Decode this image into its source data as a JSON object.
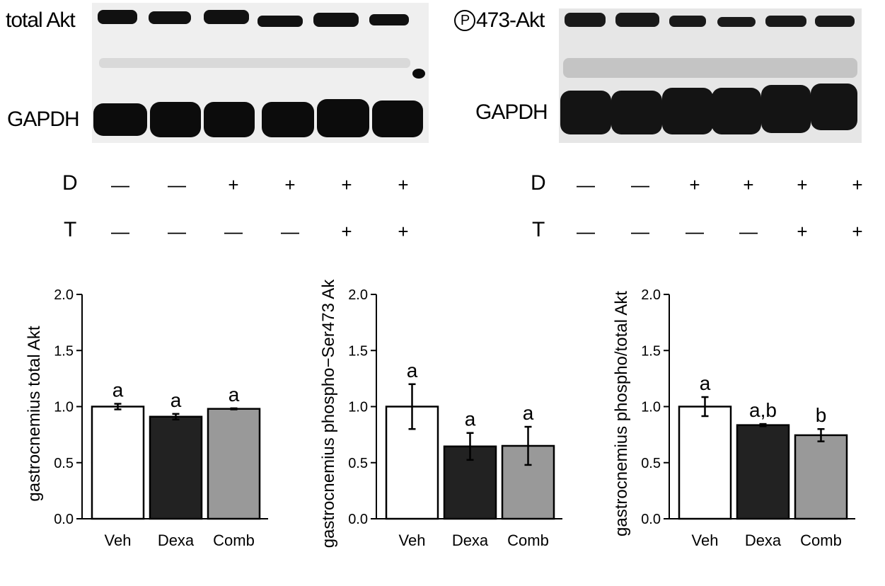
{
  "blots": [
    {
      "left_labels": [
        "total Akt",
        "GAPDH"
      ],
      "mark": ""
    },
    {
      "left_labels": [
        "473-Akt",
        "GAPDH"
      ],
      "mark": "P"
    }
  ],
  "treatment": {
    "row_labels": [
      "D",
      "T"
    ],
    "D": [
      "—",
      "—",
      "+",
      "+",
      "+",
      "+"
    ],
    "T": [
      "—",
      "—",
      "—",
      "—",
      "+",
      "+"
    ]
  },
  "chart_data": [
    {
      "type": "bar",
      "categories": [
        "Veh",
        "Dexa",
        "Comb"
      ],
      "values": [
        1.0,
        0.91,
        0.98
      ],
      "errors": [
        0.025,
        0.025,
        0.005
      ],
      "letters": [
        "a",
        "a",
        "a"
      ],
      "colors": [
        "#ffffff",
        "#222222",
        "#999999"
      ],
      "ylabel": "gastrocnemius total Akt",
      "ylim": [
        0,
        2.0
      ],
      "yticks": [
        "0.0",
        "0.5",
        "1.0",
        "1.5",
        "2.0"
      ]
    },
    {
      "type": "bar",
      "categories": [
        "Veh",
        "Dexa",
        "Comb"
      ],
      "values": [
        1.0,
        0.645,
        0.65
      ],
      "errors": [
        0.2,
        0.12,
        0.17
      ],
      "letters": [
        "a",
        "a",
        "a"
      ],
      "colors": [
        "#ffffff",
        "#222222",
        "#999999"
      ],
      "ylabel": "gastrocnemius phospho−Ser473 Ak",
      "ylim": [
        0,
        2.0
      ],
      "yticks": [
        "0.0",
        "0.5",
        "1.0",
        "1.5",
        "2.0"
      ]
    },
    {
      "type": "bar",
      "categories": [
        "Veh",
        "Dexa",
        "Comb"
      ],
      "values": [
        1.0,
        0.835,
        0.745
      ],
      "errors": [
        0.085,
        0.01,
        0.055
      ],
      "letters": [
        "a",
        "a,b",
        "b"
      ],
      "colors": [
        "#ffffff",
        "#222222",
        "#999999"
      ],
      "ylabel": "gastrocnemius phospho/total Akt",
      "ylim": [
        0,
        2.0
      ],
      "yticks": [
        "0.0",
        "0.5",
        "1.0",
        "1.5",
        "2.0"
      ]
    }
  ]
}
